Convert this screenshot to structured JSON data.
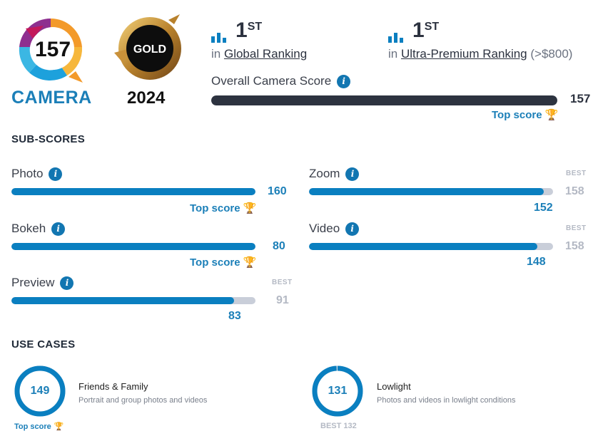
{
  "badge": {
    "score": "157",
    "label": "CAMERA"
  },
  "award": {
    "label": "GOLD",
    "year": "2024"
  },
  "rankings": [
    {
      "rank": "1",
      "suffix": "ST",
      "prefix": "in",
      "link": "Global Ranking",
      "extra": ""
    },
    {
      "rank": "1",
      "suffix": "ST",
      "prefix": "in",
      "link": "Ultra-Premium Ranking",
      "extra": "(>$800)"
    }
  ],
  "overall": {
    "label": "Overall Camera Score",
    "value": "157",
    "fill": 1.0,
    "top_label": "Top score"
  },
  "subscores": {
    "heading": "SUB-SCORES",
    "best_label": "BEST",
    "top_label": "Top score",
    "items": [
      {
        "name": "Photo",
        "value": "160",
        "fill": 1.0,
        "top": true
      },
      {
        "name": "Zoom",
        "value": "152",
        "best": "158",
        "fill": 0.962
      },
      {
        "name": "Bokeh",
        "value": "80",
        "fill": 1.0,
        "top": true
      },
      {
        "name": "Video",
        "value": "148",
        "best": "158",
        "fill": 0.937
      },
      {
        "name": "Preview",
        "value": "83",
        "best": "91",
        "fill": 0.912
      }
    ]
  },
  "usecases": {
    "heading": "USE CASES",
    "items": [
      {
        "score": "149",
        "title": "Friends & Family",
        "desc": "Portrait and group photos and videos",
        "footer": "Top score",
        "fill": 1.0
      },
      {
        "score": "131",
        "title": "Lowlight",
        "desc": "Photos and videos in lowlight conditions",
        "footer": "BEST 132",
        "fill": 0.992
      }
    ]
  },
  "colors": {
    "accent": "#0a7fc0",
    "dark_bar": "#2d3340",
    "track": "#c9ced9",
    "trophy": "#f5b82e"
  },
  "icons": {
    "info": "i",
    "rank": "bar-chart-icon",
    "trophy": "trophy-icon"
  }
}
